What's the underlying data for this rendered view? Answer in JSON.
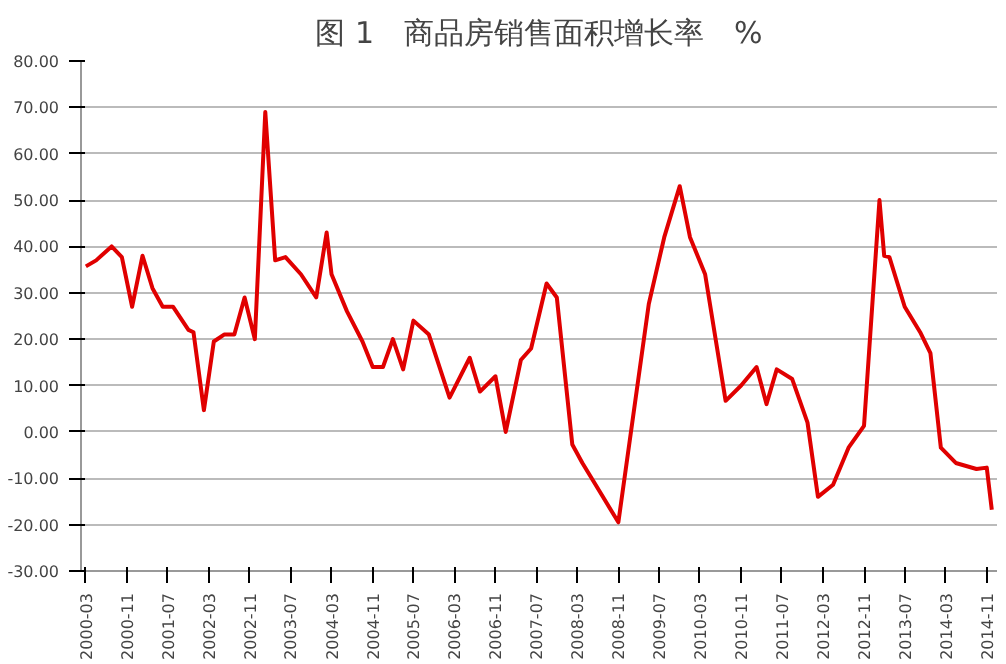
{
  "chart_data": {
    "type": "line",
    "title": "图 1　商品房销售面积增长率　%",
    "x": [
      "2000-03",
      "2000-05",
      "2000-08",
      "2000-10",
      "2000-12",
      "2001-02",
      "2001-04",
      "2001-06",
      "2001-08",
      "2001-11",
      "2001-12",
      "2002-02",
      "2002-04",
      "2002-06",
      "2002-08",
      "2002-10",
      "2002-12",
      "2003-02",
      "2003-04",
      "2003-06",
      "2003-09",
      "2003-12",
      "2004-02",
      "2004-03",
      "2004-06",
      "2004-09",
      "2004-11",
      "2005-01",
      "2005-03",
      "2005-05",
      "2005-07",
      "2005-10",
      "2006-02",
      "2006-03",
      "2006-06",
      "2006-08",
      "2006-11",
      "2007-01",
      "2007-04",
      "2007-06",
      "2007-09",
      "2007-11",
      "2008-02",
      "2008-04",
      "2008-08",
      "2008-11",
      "2009-05",
      "2009-08",
      "2009-11",
      "2010-01",
      "2010-04",
      "2010-08",
      "2010-11",
      "2011-02",
      "2011-04",
      "2011-06",
      "2011-09",
      "2011-12",
      "2012-02",
      "2012-05",
      "2012-08",
      "2012-11",
      "2013-02",
      "2013-03",
      "2013-04",
      "2013-07",
      "2013-10",
      "2013-12",
      "2014-02",
      "2014-05",
      "2014-09",
      "2014-11",
      "2014-12"
    ],
    "series": [
      {
        "color": "#e00000",
        "values": [
          35.7,
          37,
          40,
          37.7,
          27,
          38,
          31,
          27,
          27,
          22,
          21.5,
          4.7,
          19.5,
          21,
          21,
          29,
          20,
          69,
          37,
          37.7,
          34,
          29,
          43,
          34,
          26,
          19.5,
          14,
          14,
          20,
          13.5,
          24,
          21,
          7.4,
          9.4,
          16,
          8.7,
          12,
          0,
          15.5,
          18,
          32,
          29,
          -2.7,
          -6.7,
          -14,
          -19.5,
          27.6,
          42,
          53,
          42,
          34,
          6.7,
          10,
          14,
          6,
          13.5,
          11.4,
          2,
          -14,
          -11.4,
          -3.4,
          1.3,
          50,
          38,
          37.7,
          27,
          21.5,
          17,
          -3.4,
          -6.7,
          -8,
          -7.7,
          -16.8
        ]
      }
    ],
    "xlim": [
      "2000-02",
      "2015-01"
    ],
    "xticks": [
      "2000-03",
      "2000-11",
      "2001-07",
      "2002-03",
      "2002-11",
      "2003-07",
      "2004-03",
      "2004-11",
      "2005-07",
      "2006-03",
      "2006-11",
      "2007-07",
      "2008-03",
      "2008-11",
      "2009-07",
      "2010-03",
      "2010-11",
      "2011-07",
      "2012-03",
      "2012-11",
      "2013-07",
      "2014-03",
      "2014-11"
    ],
    "ylim": [
      -30,
      80
    ],
    "yticks": [
      {
        "value": -30,
        "label": "-30.00"
      },
      {
        "value": -20,
        "label": "-20.00"
      },
      {
        "value": -10,
        "label": "-10.00"
      },
      {
        "value": 0,
        "label": "0.00"
      },
      {
        "value": 10,
        "label": "10.00"
      },
      {
        "value": 20,
        "label": "20.00"
      },
      {
        "value": 30,
        "label": "30.00"
      },
      {
        "value": 40,
        "label": "40.00"
      },
      {
        "value": 50,
        "label": "50.00"
      },
      {
        "value": 60,
        "label": "60.00"
      },
      {
        "value": 70,
        "label": "70.00"
      },
      {
        "value": 80,
        "label": "80.00"
      }
    ],
    "grid": "y",
    "marker": "none",
    "line_style": "solid"
  }
}
